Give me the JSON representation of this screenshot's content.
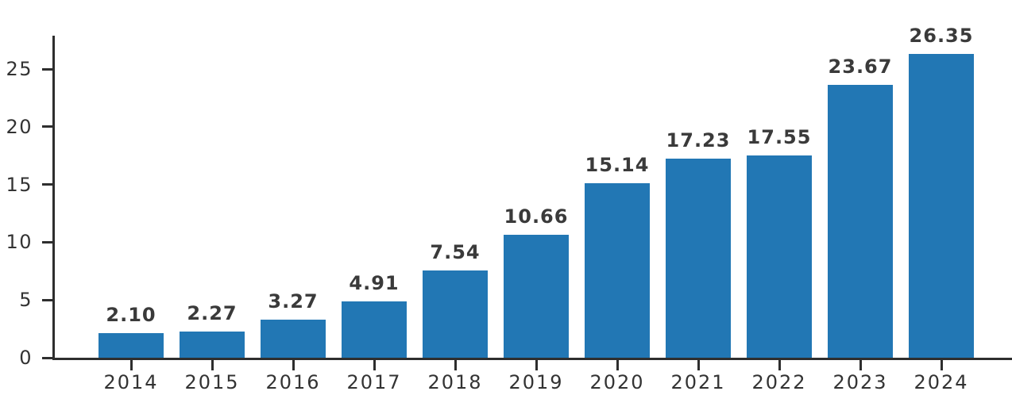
{
  "chart_data": {
    "type": "bar",
    "title": "",
    "xlabel": "",
    "ylabel": "",
    "categories": [
      "2014",
      "2015",
      "2016",
      "2017",
      "2018",
      "2019",
      "2020",
      "2021",
      "2022",
      "2023",
      "2024"
    ],
    "values": [
      2.1,
      2.27,
      3.27,
      4.91,
      7.54,
      10.66,
      15.14,
      17.23,
      17.55,
      23.67,
      26.35
    ],
    "bar_labels": [
      "2.10",
      "2.27",
      "3.27",
      "4.91",
      "7.54",
      "10.66",
      "15.14",
      "17.23",
      "17.55",
      "23.67",
      "26.35"
    ],
    "yticks": [
      0,
      5,
      10,
      15,
      20,
      25
    ],
    "ylim": [
      0,
      27.9
    ],
    "grid": false,
    "legend": null,
    "colors": {
      "bar": "#2277b4",
      "axis": "#2e2e2e",
      "tick_label": "#333333",
      "value_label": "#3a3a3a",
      "background": "#ffffff"
    }
  }
}
